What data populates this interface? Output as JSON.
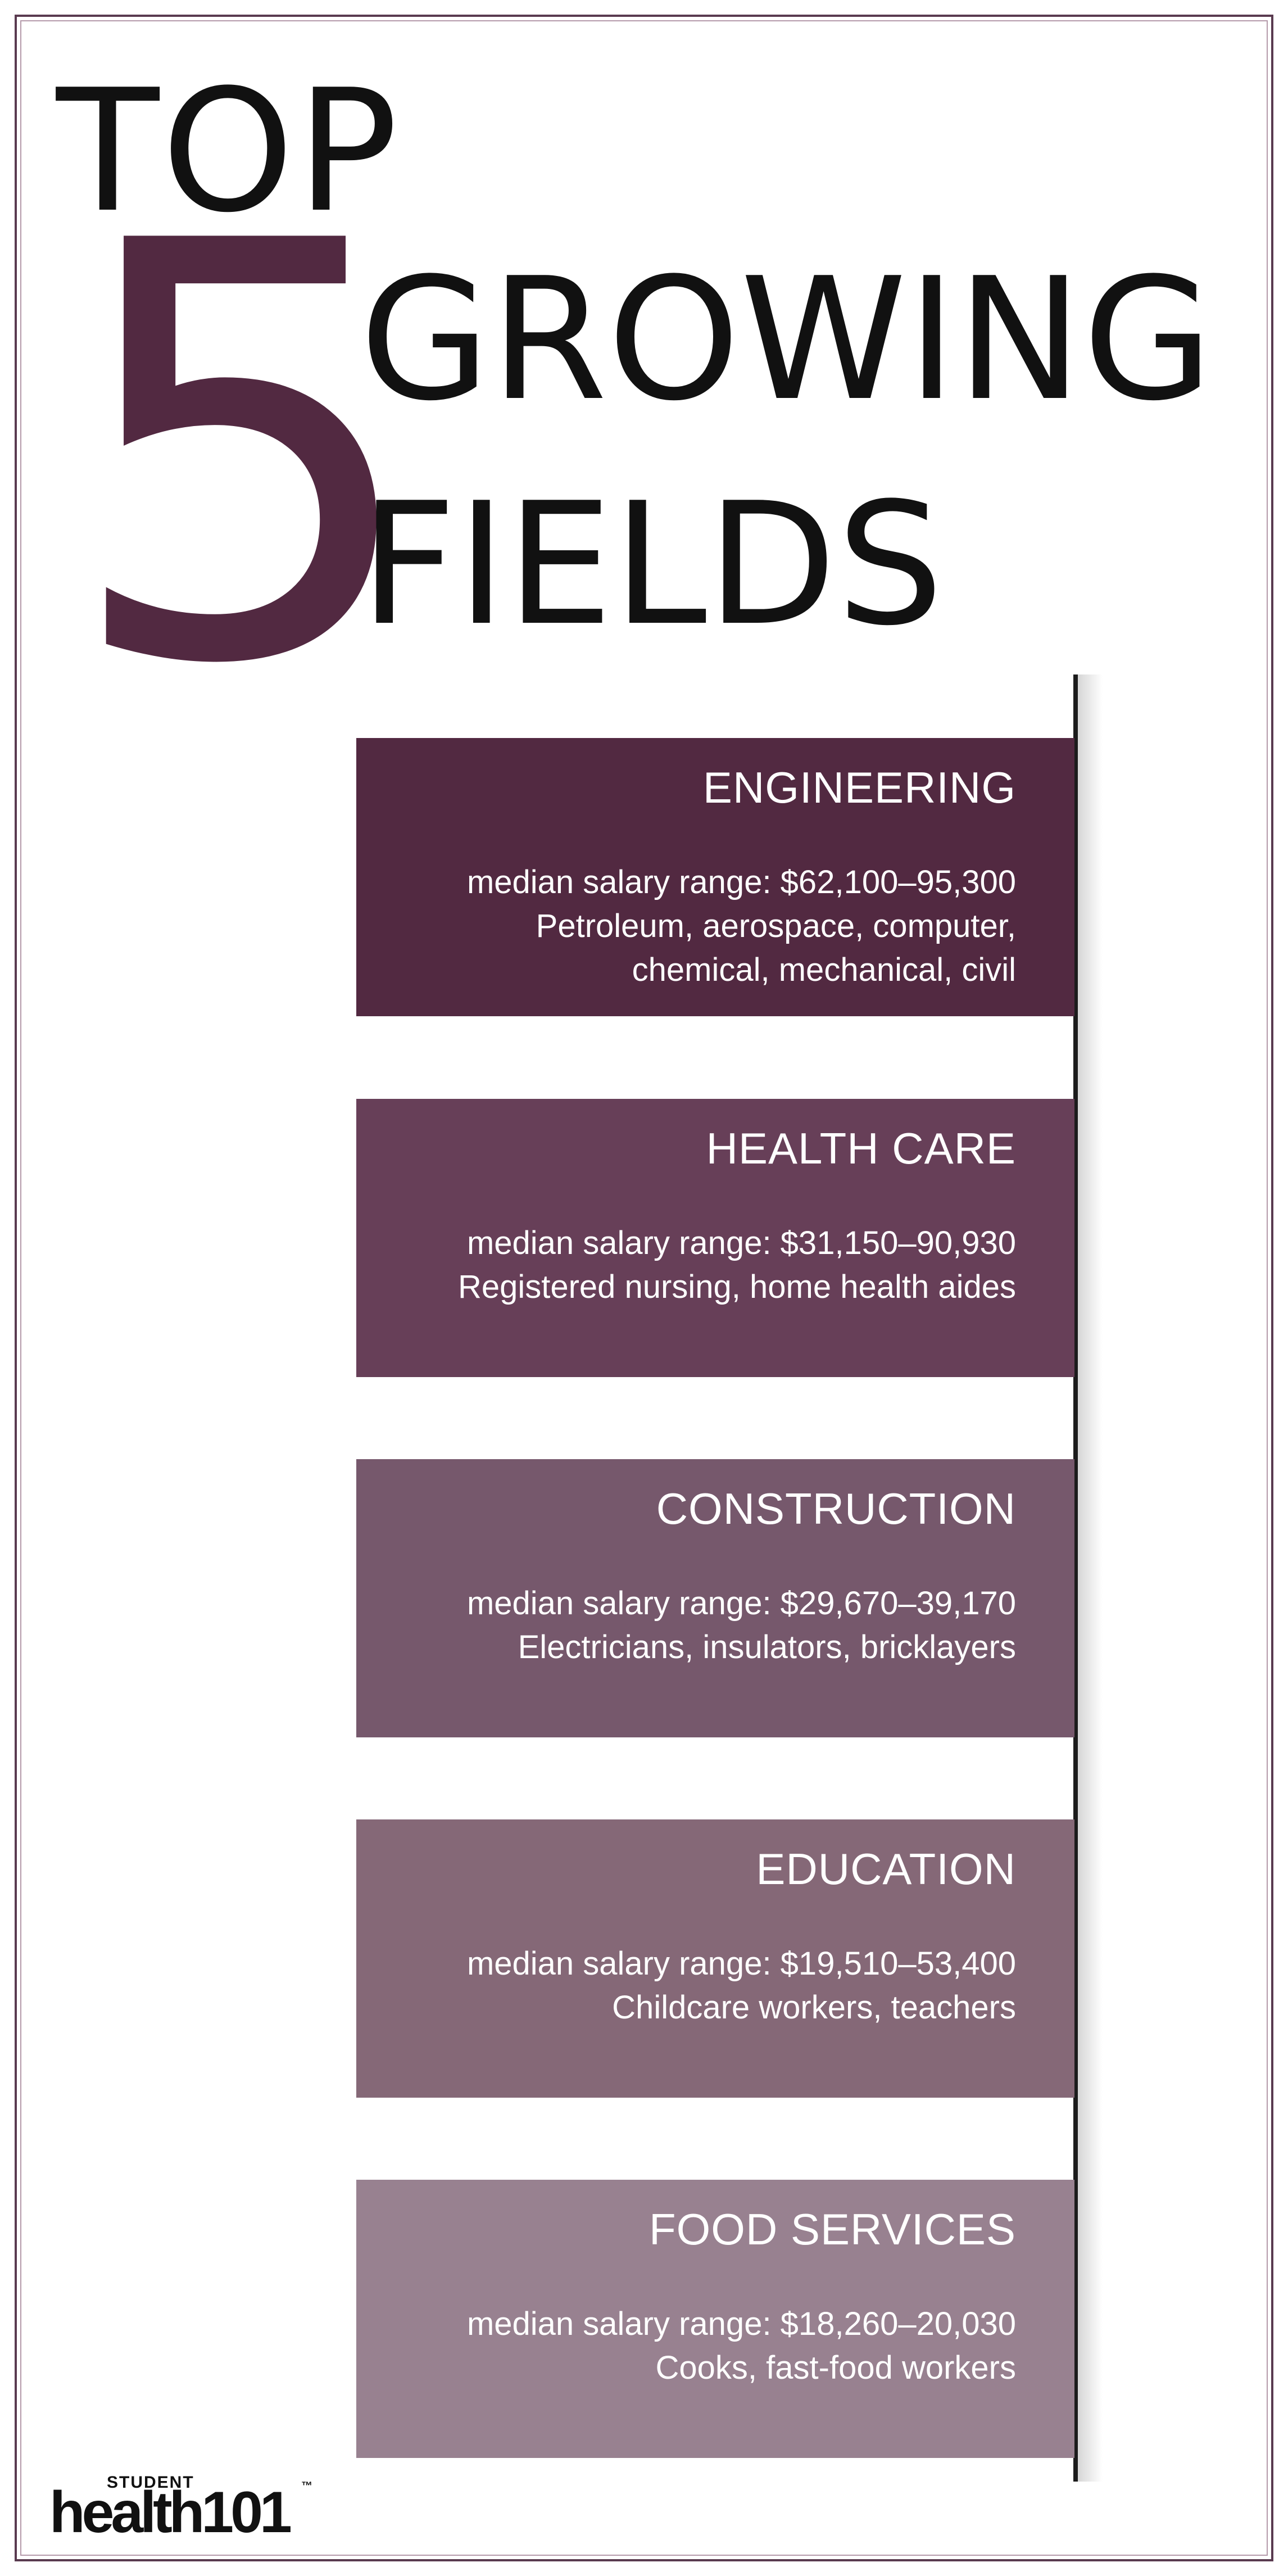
{
  "title": {
    "line1": "TOP",
    "number": "5",
    "line2": "GROWING",
    "line3": "FIELDS"
  },
  "fields": [
    {
      "name": "ENGINEERING",
      "salary": "median salary range: $62,100–95,300",
      "jobs_line1": "Petroleum, aerospace, computer,",
      "jobs_line2": "chemical, mechanical, civil",
      "color": "#522941"
    },
    {
      "name": "HEALTH CARE",
      "salary": "median salary range: $31,150–90,930",
      "jobs_line1": "Registered nursing, home health aides",
      "jobs_line2": "",
      "color": "#673f58"
    },
    {
      "name": "CONSTRUCTION",
      "salary": "median salary range: $29,670–39,170",
      "jobs_line1": "Electricians, insulators, bricklayers",
      "jobs_line2": "",
      "color": "#76586c"
    },
    {
      "name": "EDUCATION",
      "salary": "median salary range: $19,510–53,400",
      "jobs_line1": "Childcare workers, teachers",
      "jobs_line2": "",
      "color": "#856877"
    },
    {
      "name": "FOOD SERVICES",
      "salary": "median salary range: $18,260–20,030",
      "jobs_line1": "Cooks, fast-food workers",
      "jobs_line2": "",
      "color": "#988190"
    }
  ],
  "logo": {
    "student": "STUDENT",
    "main": "health101",
    "tm": "™"
  }
}
